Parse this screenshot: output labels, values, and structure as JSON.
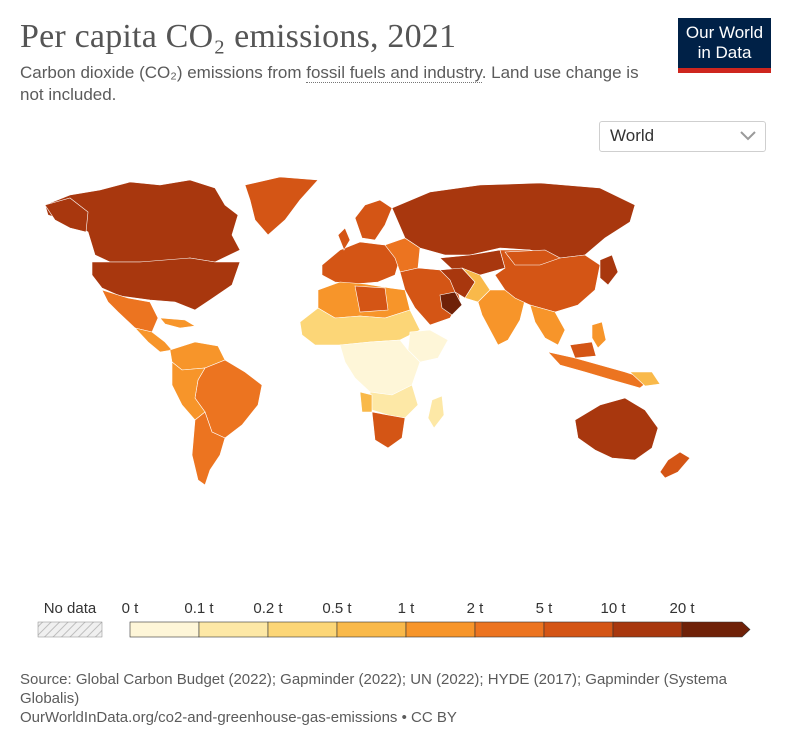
{
  "header": {
    "title": "Per capita CO₂ emissions, 2021",
    "subtitle_pre": "Carbon dioxide (CO₂) emissions from ",
    "subtitle_link": "fossil fuels and industry",
    "subtitle_post": ". Land use change is not included."
  },
  "logo": {
    "line1": "Our World",
    "line2": "in Data",
    "bg_color": "#002147",
    "bar_color": "#ce261e"
  },
  "region_select": {
    "value": "World",
    "icon": "chevron-down-icon"
  },
  "legend": {
    "no_data_label": "No data",
    "bins": [
      {
        "label": "0 t",
        "color": "#fef6d8"
      },
      {
        "label": "0.1 t",
        "color": "#fde8a6"
      },
      {
        "label": "0.2 t",
        "color": "#fcd677"
      },
      {
        "label": "0.5 t",
        "color": "#f9b94a"
      },
      {
        "label": "1 t",
        "color": "#f7952a"
      },
      {
        "label": "2 t",
        "color": "#ec7420"
      },
      {
        "label": "5 t",
        "color": "#d45515"
      },
      {
        "label": "10 t",
        "color": "#a8370e"
      },
      {
        "label": "20 t",
        "color": "#6f2108"
      }
    ]
  },
  "footer": {
    "source": "Source: Global Carbon Budget (2022); Gapminder (2022); UN (2022); HYDE (2017); Gapminder (Systema Globalis)",
    "url": "OurWorldInData.org/co2-and-greenhouse-gas-emissions • CC BY"
  }
}
